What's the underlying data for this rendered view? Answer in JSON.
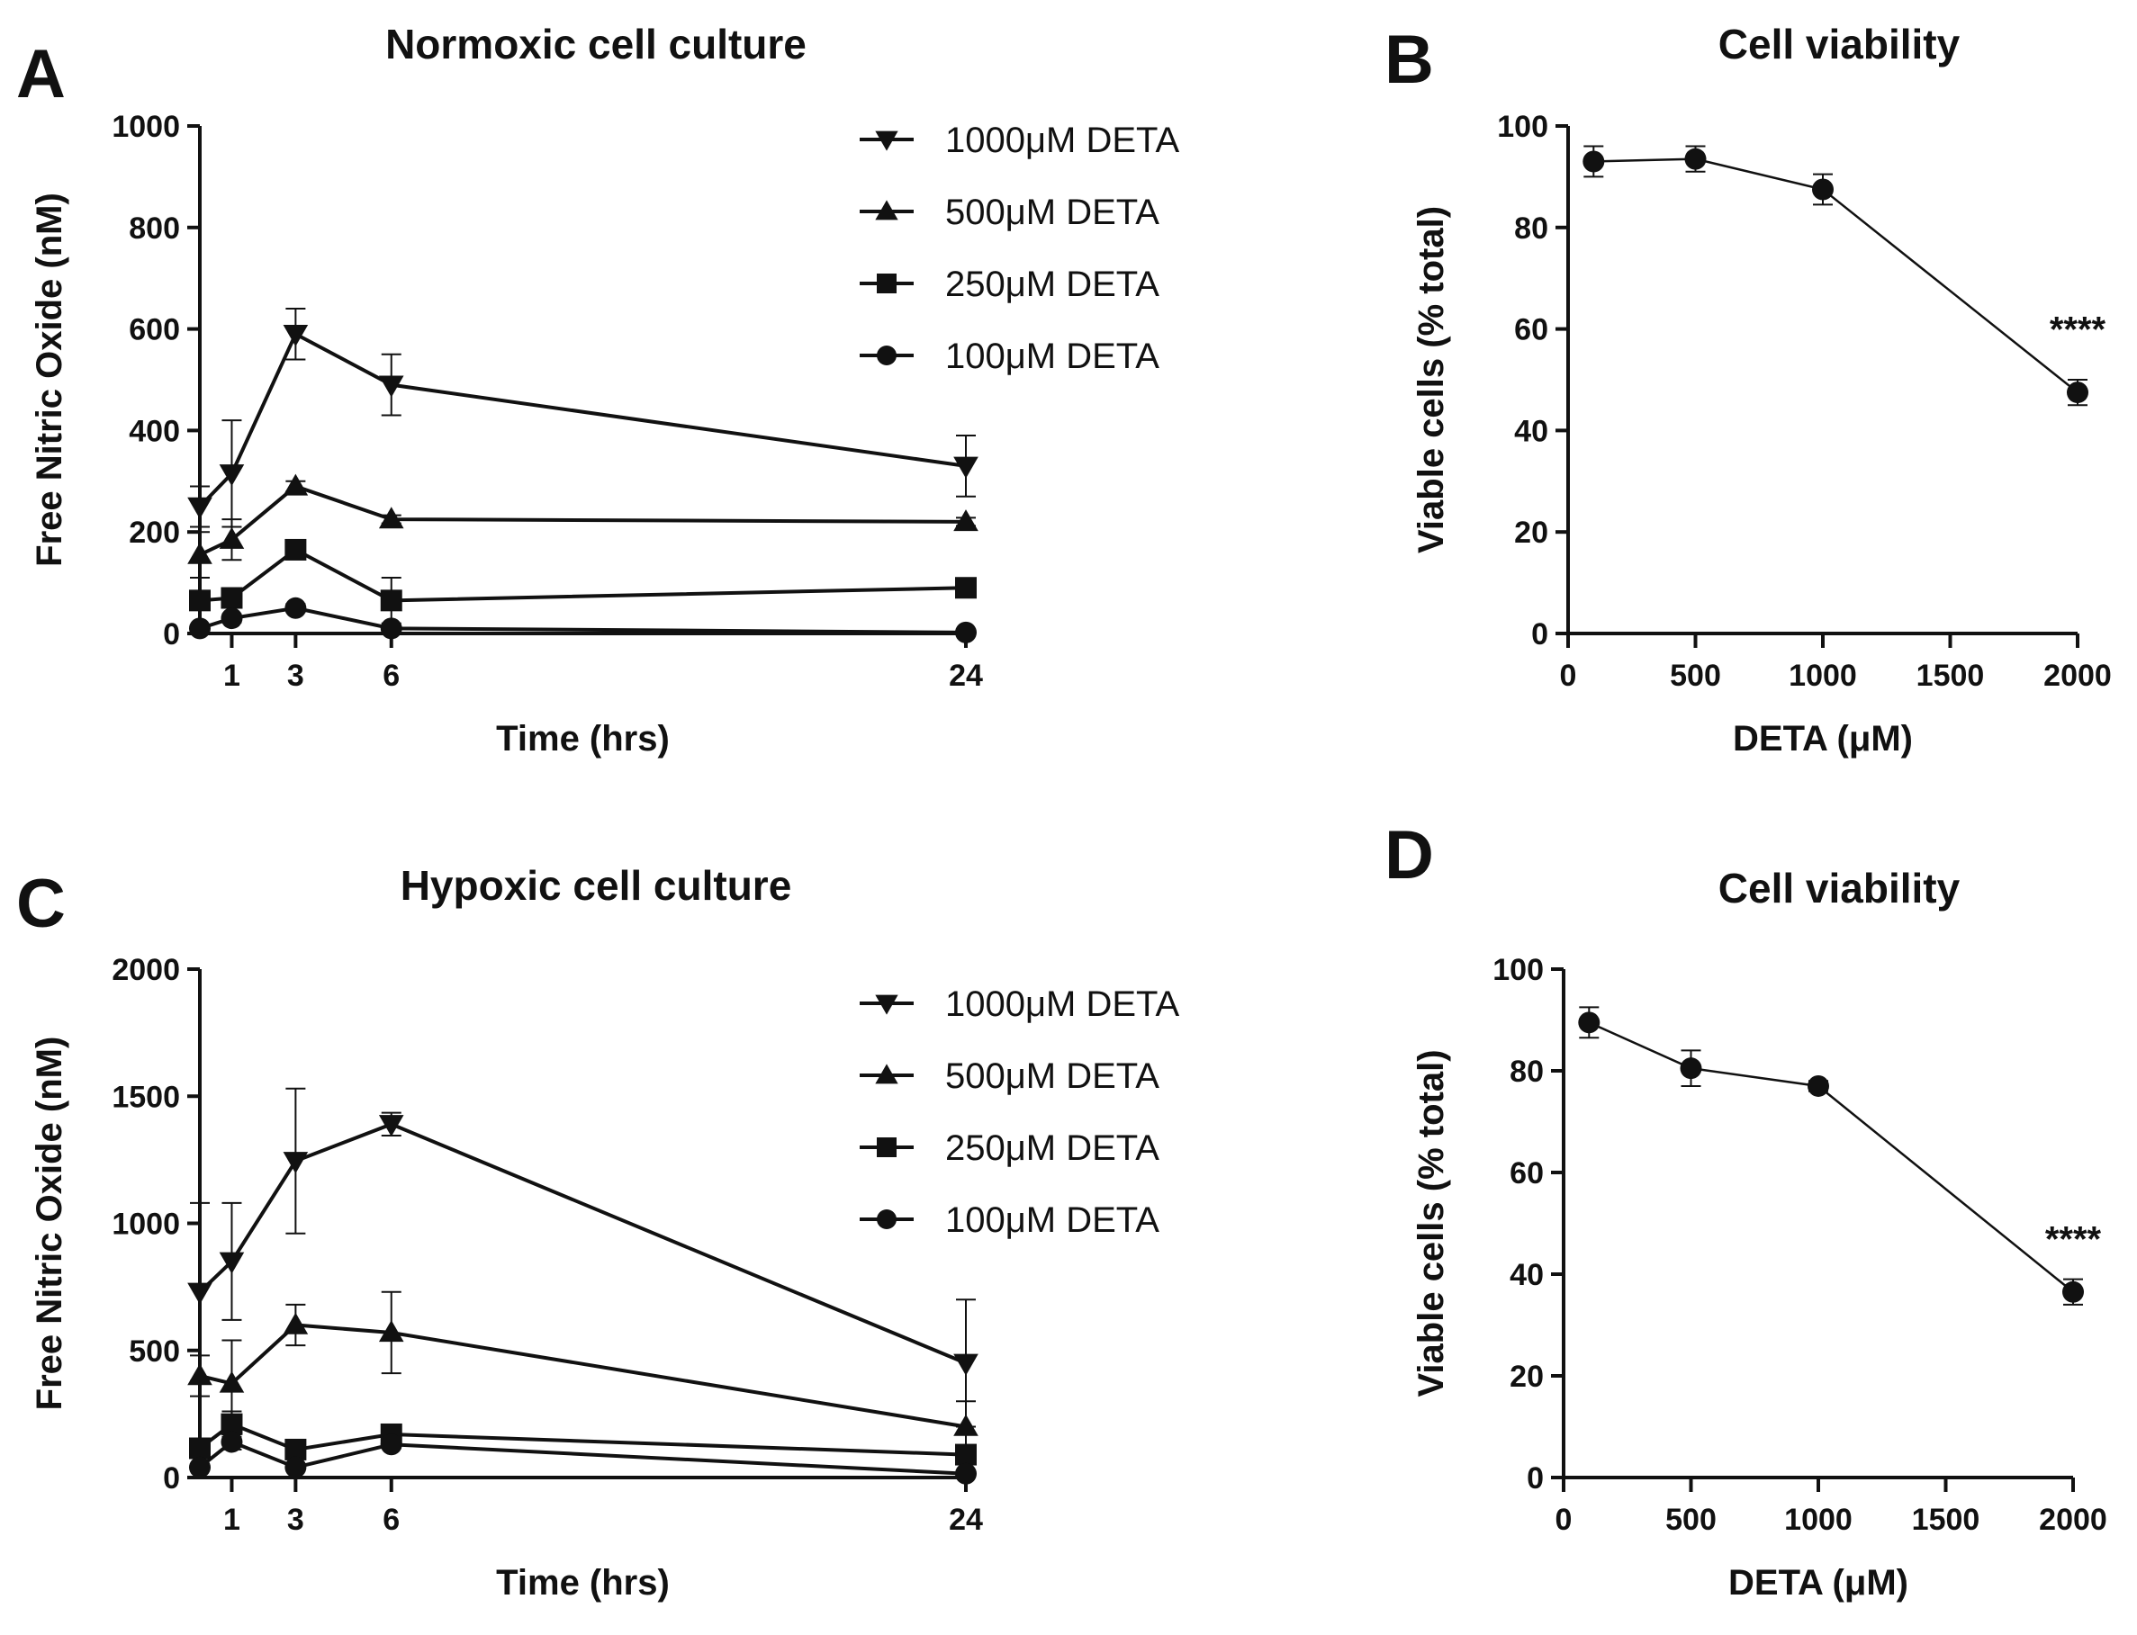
{
  "chart_data": [
    {
      "id": "A",
      "type": "line",
      "panel_label": "A",
      "title": "Normoxic cell culture",
      "xlabel": "Time (hrs)",
      "ylabel": "Free Nitric Oxide (nM)",
      "xlim": [
        0,
        24
      ],
      "ylim": [
        0,
        1000
      ],
      "xticks": [
        1,
        3,
        6,
        24
      ],
      "yticks": [
        0,
        200,
        400,
        600,
        800,
        1000
      ],
      "legend_position": "top-right",
      "grid": false,
      "series": [
        {
          "name": "1000μM DETA",
          "marker": "triangle-down",
          "x": [
            0,
            1,
            3,
            6,
            24
          ],
          "y": [
            250,
            315,
            590,
            490,
            330
          ],
          "err": [
            40,
            105,
            50,
            60,
            60
          ]
        },
        {
          "name": "500μM DETA",
          "marker": "triangle-up",
          "x": [
            0,
            1,
            3,
            6,
            24
          ],
          "y": [
            155,
            185,
            290,
            225,
            220
          ],
          "err": [
            45,
            40,
            10,
            8,
            8
          ]
        },
        {
          "name": "250μM DETA",
          "marker": "square",
          "x": [
            0,
            1,
            3,
            6,
            24
          ],
          "y": [
            65,
            70,
            165,
            65,
            90
          ],
          "err": [
            10,
            10,
            15,
            45,
            8
          ]
        },
        {
          "name": "100μM DETA",
          "marker": "circle",
          "x": [
            0,
            1,
            3,
            6,
            24
          ],
          "y": [
            10,
            30,
            50,
            10,
            2
          ],
          "err": [
            5,
            8,
            8,
            5,
            2
          ]
        }
      ]
    },
    {
      "id": "B",
      "type": "line",
      "panel_label": "B",
      "title": "Cell viability",
      "xlabel": "DETA (μM)",
      "ylabel": "Viable cells (% total)",
      "xlim": [
        0,
        2000
      ],
      "ylim": [
        0,
        100
      ],
      "xticks": [
        0,
        500,
        1000,
        1500,
        2000
      ],
      "yticks": [
        0,
        20,
        40,
        60,
        80,
        100
      ],
      "grid": false,
      "series": [
        {
          "name": "Viable cells",
          "marker": "circle",
          "x": [
            100,
            500,
            1000,
            2000
          ],
          "y": [
            93,
            93.5,
            87.5,
            47.5
          ],
          "err": [
            3,
            2.5,
            3,
            2.5
          ]
        }
      ],
      "annotations": [
        {
          "text": "****",
          "x": 2000,
          "y": 60
        }
      ]
    },
    {
      "id": "C",
      "type": "line",
      "panel_label": "C",
      "title": "Hypoxic cell culture",
      "xlabel": "Time (hrs)",
      "ylabel": "Free Nitric Oxide (nM)",
      "xlim": [
        0,
        24
      ],
      "ylim": [
        0,
        2000
      ],
      "xticks": [
        1,
        3,
        6,
        24
      ],
      "yticks": [
        0,
        500,
        1000,
        1500,
        2000
      ],
      "legend_position": "top-right",
      "grid": false,
      "series": [
        {
          "name": "1000μM DETA",
          "marker": "triangle-down",
          "x": [
            0,
            1,
            3,
            6,
            24
          ],
          "y": [
            730,
            850,
            1245,
            1390,
            450
          ],
          "err": [
            350,
            230,
            285,
            45,
            250
          ]
        },
        {
          "name": "500μM DETA",
          "marker": "triangle-up",
          "x": [
            0,
            1,
            3,
            6,
            24
          ],
          "y": [
            400,
            370,
            600,
            570,
            200
          ],
          "err": [
            80,
            170,
            80,
            160,
            100
          ]
        },
        {
          "name": "250μM DETA",
          "marker": "square",
          "x": [
            0,
            1,
            3,
            6,
            24
          ],
          "y": [
            115,
            210,
            110,
            170,
            90
          ],
          "err": [
            20,
            50,
            20,
            20,
            15
          ]
        },
        {
          "name": "100μM DETA",
          "marker": "circle",
          "x": [
            0,
            1,
            3,
            6,
            24
          ],
          "y": [
            40,
            140,
            40,
            130,
            15
          ],
          "err": [
            10,
            30,
            10,
            15,
            5
          ]
        }
      ]
    },
    {
      "id": "D",
      "type": "line",
      "panel_label": "D",
      "title": "Cell viability",
      "xlabel": "DETA (μM)",
      "ylabel": "Viable cells (% total)",
      "xlim": [
        0,
        2000
      ],
      "ylim": [
        0,
        100
      ],
      "xticks": [
        0,
        500,
        1000,
        1500,
        2000
      ],
      "yticks": [
        0,
        20,
        40,
        60,
        80,
        100
      ],
      "grid": false,
      "series": [
        {
          "name": "Viable cells",
          "marker": "circle",
          "x": [
            100,
            500,
            1000,
            2000
          ],
          "y": [
            89.5,
            80.5,
            77,
            36.5
          ],
          "err": [
            3,
            3.5,
            1,
            2.5
          ]
        }
      ],
      "annotations": [
        {
          "text": "****",
          "x": 2000,
          "y": 47
        }
      ]
    }
  ]
}
